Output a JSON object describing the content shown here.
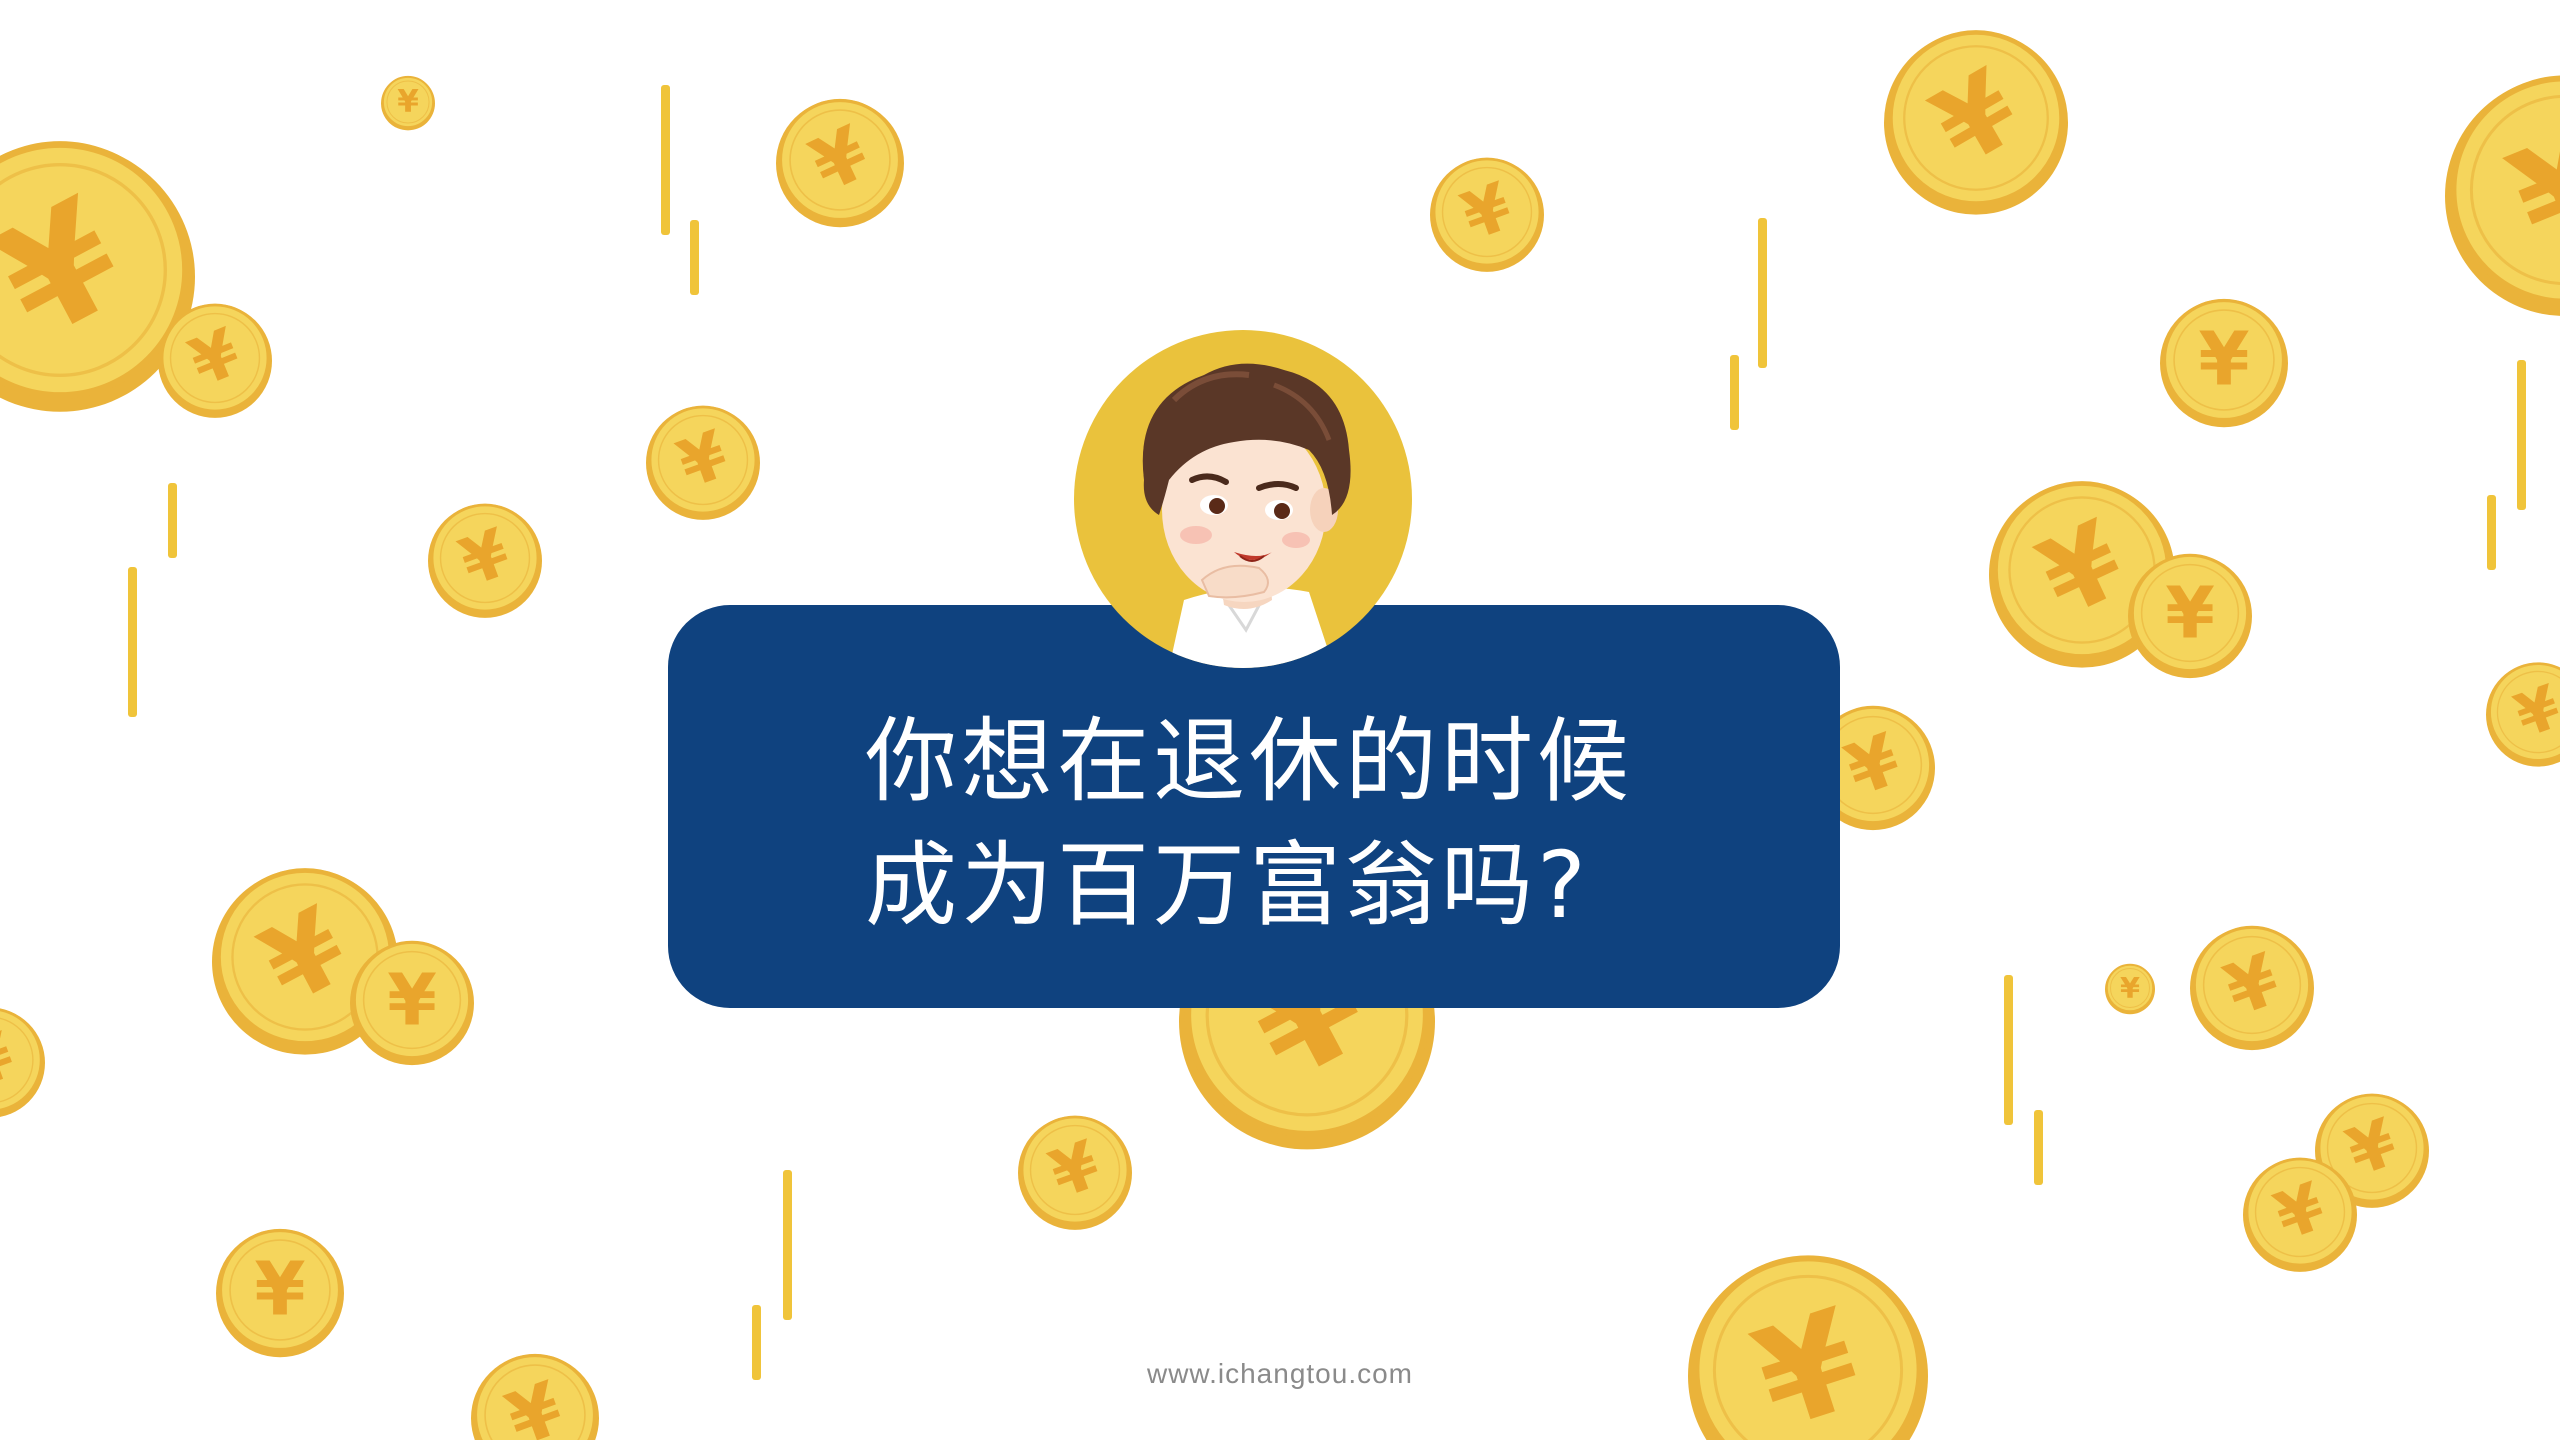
{
  "headline": {
    "line1": "你想在退休的时候",
    "line2": "成为百万富翁吗?"
  },
  "footer": {
    "url": "www.ichangtou.com"
  },
  "decor": {
    "coin_symbol": "¥",
    "coin_icon": "yen-coin-icon",
    "avatar_icon": "cartoon-boy-avatar",
    "colors": {
      "coin_fill": "#f5d55c",
      "coin_rim": "#eab33a",
      "coin_symbol": "#e9a52c",
      "bubble": "#0f427f",
      "avatar_bg": "#eac23c",
      "streak": "#f0c43a"
    }
  }
}
